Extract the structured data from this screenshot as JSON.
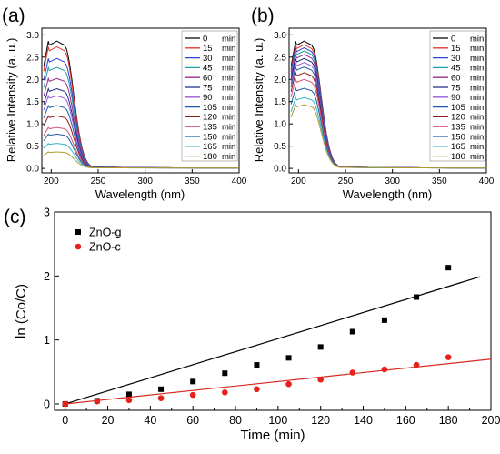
{
  "panel_labels": [
    "(a)",
    "(b)",
    "(c)"
  ],
  "chart_data": [
    {
      "type": "line",
      "panel": "(a)",
      "title": "",
      "xlabel": "Wavelength (nm)",
      "ylabel": "Relative Intensity (a. u.)",
      "xlim": [
        190,
        400
      ],
      "ylim": [
        -0.1,
        3.15
      ],
      "xticks": [
        "200",
        "250",
        "300",
        "350",
        "400"
      ],
      "yticks": [
        "0.0",
        "0.5",
        "1.0",
        "1.5",
        "2.0",
        "2.5",
        "3.0"
      ],
      "legend_position": "top-right",
      "series": [
        {
          "name": "0",
          "unit": "min",
          "color": "#000000",
          "peak": 2.85
        },
        {
          "name": "15",
          "unit": "min",
          "color": "#e8342c",
          "peak": 2.72
        },
        {
          "name": "30",
          "unit": "min",
          "color": "#2d3fd4",
          "peak": 2.46
        },
        {
          "name": "45",
          "unit": "min",
          "color": "#1f9aa6",
          "peak": 2.26
        },
        {
          "name": "60",
          "unit": "min",
          "color": "#9a2c8e",
          "peak": 2.01
        },
        {
          "name": "75",
          "unit": "min",
          "color": "#1f2a86",
          "peak": 1.78
        },
        {
          "name": "90",
          "unit": "min",
          "color": "#9b59d9",
          "peak": 1.62
        },
        {
          "name": "105",
          "unit": "min",
          "color": "#1d5aa8",
          "peak": 1.4
        },
        {
          "name": "120",
          "unit": "min",
          "color": "#8a1c1c",
          "peak": 1.17
        },
        {
          "name": "135",
          "unit": "min",
          "color": "#d8507a",
          "peak": 0.91
        },
        {
          "name": "150",
          "unit": "min",
          "color": "#1e5aa0",
          "peak": 0.76
        },
        {
          "name": "165",
          "unit": "min",
          "color": "#2bb3c8",
          "peak": 0.55
        },
        {
          "name": "180",
          "unit": "min",
          "color": "#b09a2c",
          "peak": 0.36
        }
      ]
    },
    {
      "type": "line",
      "panel": "(b)",
      "title": "",
      "xlabel": "Wavelength (nm)",
      "ylabel": "Relative Intensity (a. u.)",
      "xlim": [
        190,
        400
      ],
      "ylim": [
        -0.1,
        3.15
      ],
      "xticks": [
        "200",
        "250",
        "300",
        "350",
        "400"
      ],
      "yticks": [
        "0.0",
        "0.5",
        "1.0",
        "1.5",
        "2.0",
        "2.5",
        "3.0"
      ],
      "legend_position": "top-right",
      "series": [
        {
          "name": "0",
          "unit": "min",
          "color": "#000000",
          "peak": 2.85
        },
        {
          "name": "15",
          "unit": "min",
          "color": "#e8342c",
          "peak": 2.77
        },
        {
          "name": "30",
          "unit": "min",
          "color": "#2d3fd4",
          "peak": 2.7
        },
        {
          "name": "45",
          "unit": "min",
          "color": "#1f9aa6",
          "peak": 2.63
        },
        {
          "name": "60",
          "unit": "min",
          "color": "#9a2c8e",
          "peak": 2.55
        },
        {
          "name": "75",
          "unit": "min",
          "color": "#1f2a86",
          "peak": 2.46
        },
        {
          "name": "90",
          "unit": "min",
          "color": "#9b59d9",
          "peak": 2.37
        },
        {
          "name": "105",
          "unit": "min",
          "color": "#1d5aa8",
          "peak": 2.27
        },
        {
          "name": "120",
          "unit": "min",
          "color": "#8a1c1c",
          "peak": 2.14
        },
        {
          "name": "135",
          "unit": "min",
          "color": "#d8507a",
          "peak": 1.99
        },
        {
          "name": "150",
          "unit": "min",
          "color": "#1e5aa0",
          "peak": 1.79
        },
        {
          "name": "165",
          "unit": "min",
          "color": "#2bb3c8",
          "peak": 1.58
        },
        {
          "name": "180",
          "unit": "min",
          "color": "#b09a2c",
          "peak": 1.42
        }
      ]
    },
    {
      "type": "scatter",
      "panel": "(c)",
      "title": "",
      "xlabel": "Time (min)",
      "ylabel": "ln (Co/C)",
      "xlim": [
        -5,
        200
      ],
      "ylim": [
        -0.1,
        3
      ],
      "xticks": [
        "0",
        "20",
        "40",
        "60",
        "80",
        "100",
        "120",
        "140",
        "160",
        "180",
        "200"
      ],
      "yticks": [
        "0",
        "1",
        "2",
        "3"
      ],
      "legend_position": "top-left",
      "series": [
        {
          "name": "ZnO-g",
          "marker": "square",
          "color": "#000000",
          "x": [
            0,
            15,
            30,
            45,
            60,
            75,
            90,
            105,
            120,
            135,
            150,
            165,
            180
          ],
          "y": [
            0.0,
            0.05,
            0.15,
            0.23,
            0.35,
            0.48,
            0.61,
            0.72,
            0.89,
            1.13,
            1.31,
            1.67,
            2.13
          ],
          "fit": {
            "color": "#000000",
            "x": [
              0,
              195
            ],
            "y": [
              0.0,
              1.99
            ]
          }
        },
        {
          "name": "ZnO-c",
          "marker": "circle",
          "color": "#e8201c",
          "x": [
            0,
            15,
            30,
            45,
            60,
            75,
            90,
            105,
            120,
            135,
            150,
            165,
            180
          ],
          "y": [
            0.0,
            0.04,
            0.06,
            0.09,
            0.14,
            0.18,
            0.23,
            0.31,
            0.38,
            0.49,
            0.54,
            0.61,
            0.73
          ],
          "fit": {
            "color": "#d42a20",
            "x": [
              0,
              200
            ],
            "y": [
              0.0,
              0.7
            ]
          }
        }
      ]
    }
  ]
}
